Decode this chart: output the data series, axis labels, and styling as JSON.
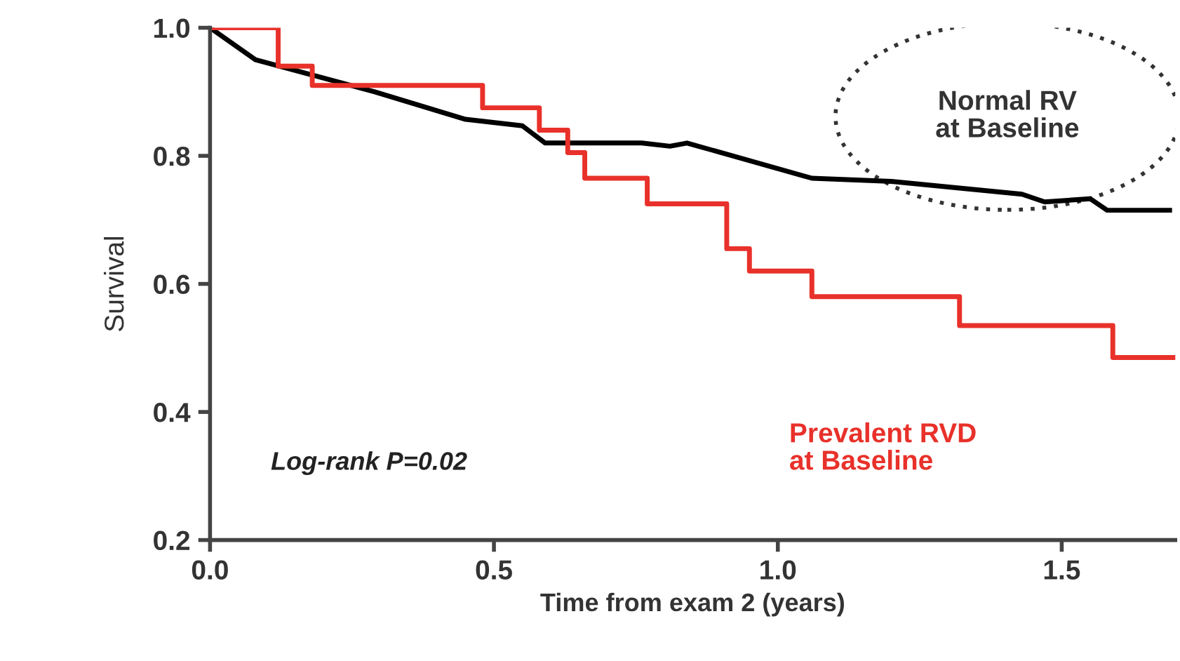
{
  "chart_data": {
    "type": "line",
    "xlabel": "Time from exam 2 (years)",
    "ylabel": "Survival",
    "xlim": [
      0,
      1.7
    ],
    "xticks": [
      {
        "value": 0,
        "label": "0.0"
      },
      0.5,
      {
        "value": 1,
        "label": "1.0"
      },
      1.5
    ],
    "ylim": [
      0.2,
      1.0
    ],
    "yticks": [
      0.2,
      0.4,
      0.6,
      0.8,
      {
        "value": 1,
        "label": "1.0"
      }
    ],
    "grid": false,
    "legend": false,
    "marker": "none",
    "line_style": "solid",
    "series": [
      {
        "name": "Normal RV\nat Baseline",
        "color": "#000000",
        "x": [
          0,
          0.08,
          0.29,
          0.45,
          0.55,
          0.59,
          0.76,
          0.81,
          0.84,
          1.06,
          1.2,
          1.43,
          1.47,
          1.55,
          1.58,
          1.69
        ],
        "values": [
          1.0,
          0.95,
          0.9,
          0.857,
          0.847,
          0.82,
          0.82,
          0.815,
          0.82,
          0.765,
          0.76,
          0.74,
          0.728,
          0.733,
          0.715,
          0.715
        ]
      },
      {
        "name": "Prevalent RVD\nat Baseline",
        "color": "#e8312a",
        "type": "step",
        "x": [
          0,
          0.12,
          0.18,
          0.48,
          0.58,
          0.63,
          0.66,
          0.77,
          0.91,
          0.95,
          1.06,
          1.32,
          1.59,
          1.7
        ],
        "values": [
          1.0,
          0.94,
          0.91,
          0.875,
          0.84,
          0.805,
          0.765,
          0.725,
          0.655,
          0.62,
          0.58,
          0.535,
          0.485,
          0.485
        ]
      }
    ],
    "annotations": [
      "Log-rank P=0.02"
    ]
  }
}
